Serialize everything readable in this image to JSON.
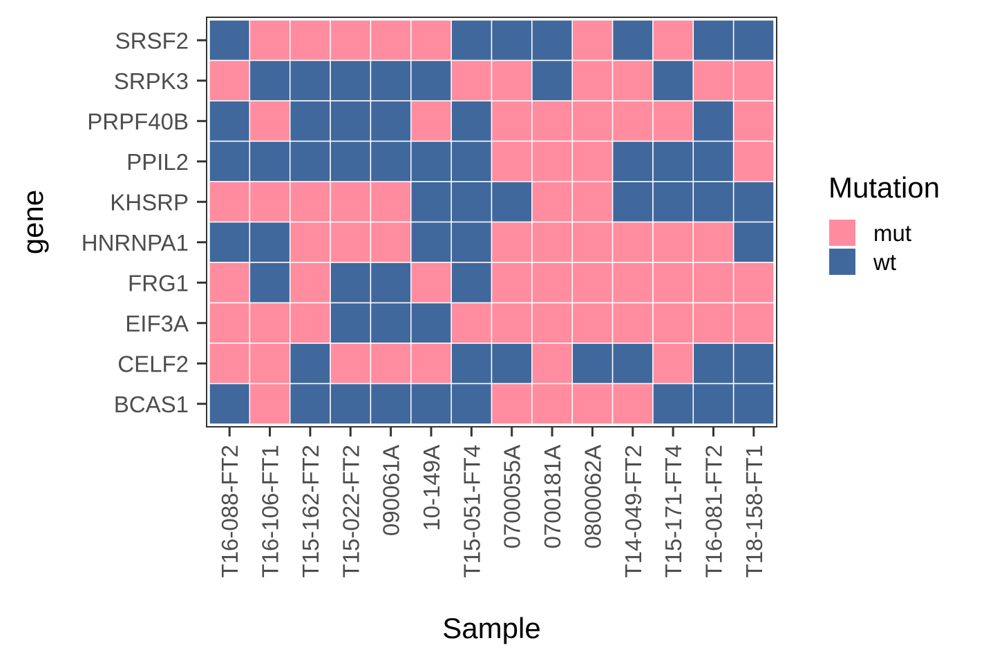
{
  "chart_data": {
    "type": "heatmap",
    "xlabel": "Sample",
    "ylabel": "gene",
    "x": [
      "T16-088-FT2",
      "T16-106-FT1",
      "T15-162-FT2",
      "T15-022-FT2",
      "090061A",
      "10-149A",
      "T15-051-FT4",
      "0700055A",
      "0700181A",
      "0800062A",
      "T14-049-FT2",
      "T15-171-FT4",
      "T16-081-FT2",
      "T18-158-FT1"
    ],
    "y": [
      "SRSF2",
      "SRPK3",
      "PRPF40B",
      "PPIL2",
      "KHSRP",
      "HNRNPA1",
      "FRG1",
      "EIF3A",
      "CELF2",
      "BCAS1"
    ],
    "values": [
      [
        "wt",
        "mut",
        "mut",
        "mut",
        "mut",
        "mut",
        "wt",
        "wt",
        "wt",
        "mut",
        "wt",
        "mut",
        "wt",
        "wt"
      ],
      [
        "mut",
        "wt",
        "wt",
        "wt",
        "wt",
        "wt",
        "mut",
        "mut",
        "wt",
        "mut",
        "mut",
        "wt",
        "mut",
        "mut"
      ],
      [
        "wt",
        "mut",
        "wt",
        "wt",
        "wt",
        "mut",
        "wt",
        "mut",
        "mut",
        "mut",
        "mut",
        "mut",
        "wt",
        "mut"
      ],
      [
        "wt",
        "wt",
        "wt",
        "wt",
        "wt",
        "wt",
        "wt",
        "mut",
        "mut",
        "mut",
        "wt",
        "wt",
        "wt",
        "mut"
      ],
      [
        "mut",
        "mut",
        "mut",
        "mut",
        "mut",
        "wt",
        "wt",
        "wt",
        "mut",
        "mut",
        "wt",
        "wt",
        "wt",
        "wt"
      ],
      [
        "wt",
        "wt",
        "mut",
        "mut",
        "mut",
        "wt",
        "wt",
        "mut",
        "mut",
        "mut",
        "mut",
        "mut",
        "mut",
        "wt"
      ],
      [
        "mut",
        "wt",
        "mut",
        "wt",
        "wt",
        "mut",
        "wt",
        "mut",
        "mut",
        "mut",
        "mut",
        "mut",
        "mut",
        "mut"
      ],
      [
        "mut",
        "mut",
        "mut",
        "wt",
        "wt",
        "wt",
        "mut",
        "mut",
        "mut",
        "mut",
        "mut",
        "mut",
        "mut",
        "mut"
      ],
      [
        "mut",
        "mut",
        "wt",
        "mut",
        "mut",
        "mut",
        "wt",
        "wt",
        "mut",
        "wt",
        "wt",
        "mut",
        "wt",
        "wt"
      ],
      [
        "wt",
        "mut",
        "wt",
        "wt",
        "wt",
        "wt",
        "wt",
        "mut",
        "mut",
        "mut",
        "mut",
        "wt",
        "wt",
        "wt"
      ]
    ],
    "legend": {
      "title": "Mutation",
      "placement": "right",
      "entries": [
        {
          "key": "mut",
          "label": "mut",
          "color": "#ff8c9f"
        },
        {
          "key": "wt",
          "label": "wt",
          "color": "#41689c"
        }
      ]
    },
    "grid": false
  }
}
